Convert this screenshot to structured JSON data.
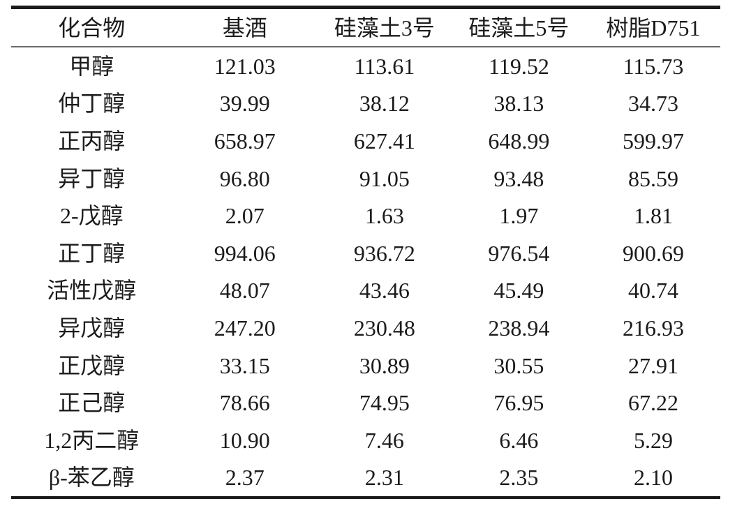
{
  "table": {
    "headers": [
      "化合物",
      "基酒",
      "硅藻土3号",
      "硅藻土5号",
      "树脂D751"
    ],
    "rows": [
      {
        "compound": "甲醇",
        "values": [
          "121.03",
          "113.61",
          "119.52",
          "115.73"
        ]
      },
      {
        "compound": "仲丁醇",
        "values": [
          "39.99",
          "38.12",
          "38.13",
          "34.73"
        ]
      },
      {
        "compound": "正丙醇",
        "values": [
          "658.97",
          "627.41",
          "648.99",
          "599.97"
        ]
      },
      {
        "compound": "异丁醇",
        "values": [
          "96.80",
          "91.05",
          "93.48",
          "85.59"
        ]
      },
      {
        "compound": "2-戊醇",
        "values": [
          "2.07",
          "1.63",
          "1.97",
          "1.81"
        ]
      },
      {
        "compound": "正丁醇",
        "values": [
          "994.06",
          "936.72",
          "976.54",
          "900.69"
        ]
      },
      {
        "compound": "活性戊醇",
        "values": [
          "48.07",
          "43.46",
          "45.49",
          "40.74"
        ]
      },
      {
        "compound": "异戊醇",
        "values": [
          "247.20",
          "230.48",
          "238.94",
          "216.93"
        ]
      },
      {
        "compound": "正戊醇",
        "values": [
          "33.15",
          "30.89",
          "30.55",
          "27.91"
        ]
      },
      {
        "compound": "正己醇",
        "values": [
          "78.66",
          "74.95",
          "76.95",
          "67.22"
        ]
      },
      {
        "compound": "1,2丙二醇",
        "values": [
          "10.90",
          "7.46",
          "6.46",
          "5.29"
        ]
      },
      {
        "compound": "β-苯乙醇",
        "values": [
          "2.37",
          "2.31",
          "2.35",
          "2.10"
        ]
      }
    ]
  },
  "chart_data": {
    "type": "table",
    "columns": [
      "化合物",
      "基酒",
      "硅藻土3号",
      "硅藻土5号",
      "树脂D751"
    ],
    "rows": [
      [
        "甲醇",
        121.03,
        113.61,
        119.52,
        115.73
      ],
      [
        "仲丁醇",
        39.99,
        38.12,
        38.13,
        34.73
      ],
      [
        "正丙醇",
        658.97,
        627.41,
        648.99,
        599.97
      ],
      [
        "异丁醇",
        96.8,
        91.05,
        93.48,
        85.59
      ],
      [
        "2-戊醇",
        2.07,
        1.63,
        1.97,
        1.81
      ],
      [
        "正丁醇",
        994.06,
        936.72,
        976.54,
        900.69
      ],
      [
        "活性戊醇",
        48.07,
        43.46,
        45.49,
        40.74
      ],
      [
        "异戊醇",
        247.2,
        230.48,
        238.94,
        216.93
      ],
      [
        "正戊醇",
        33.15,
        30.89,
        30.55,
        27.91
      ],
      [
        "正己醇",
        78.66,
        74.95,
        76.95,
        67.22
      ],
      [
        "1,2丙二醇",
        10.9,
        7.46,
        6.46,
        5.29
      ],
      [
        "β-苯乙醇",
        2.37,
        2.31,
        2.35,
        2.1
      ]
    ]
  },
  "colors": {
    "rule": "#1b1b1b",
    "thin_rule": "#6b6b6b",
    "text": "#1b1b1b",
    "background": "#ffffff"
  }
}
